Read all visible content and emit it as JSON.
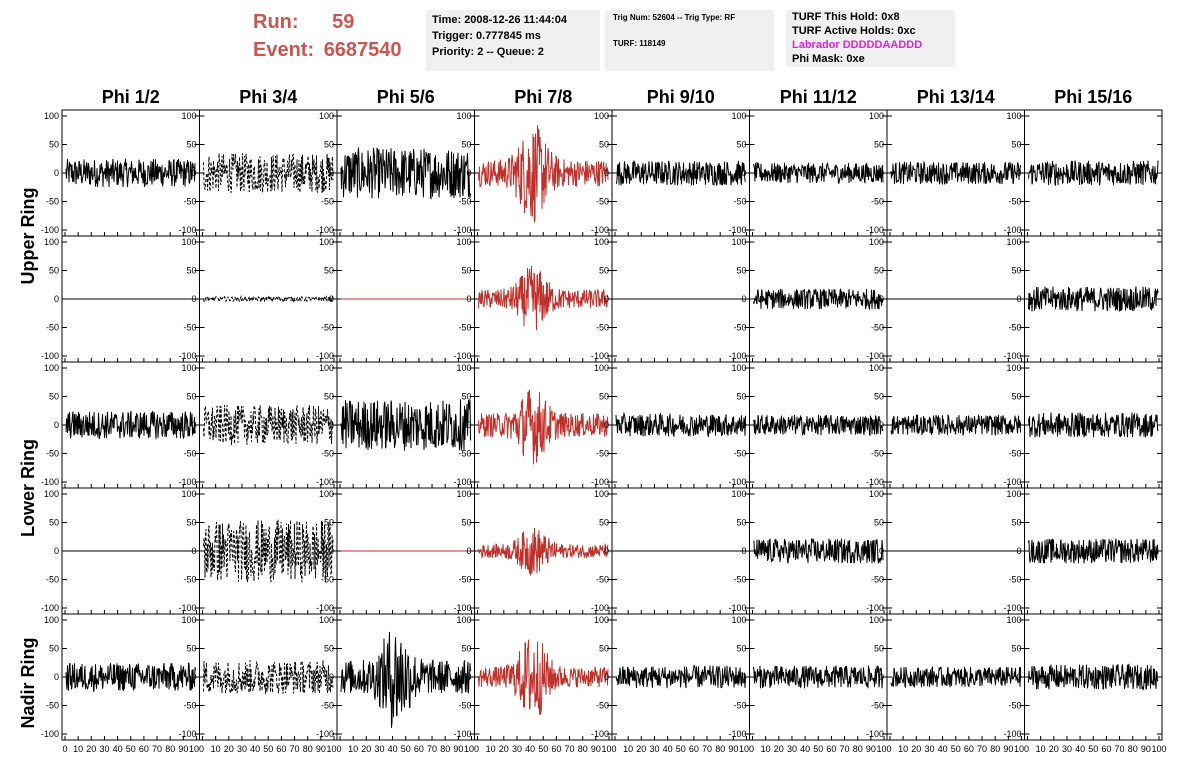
{
  "header": {
    "run_label": "Run:",
    "run_value": "59",
    "event_label": "Event:",
    "event_value": "6687540",
    "info1": [
      "Time: 2008-12-26 11:44:04",
      "Trigger: 0.777845 ms",
      "Priority: 2 -- Queue: 2"
    ],
    "info2": [
      "Trig Num: 52604 -- Trig Type: RF",
      "TURF: 118149"
    ],
    "info3": [
      "TURF This Hold: 0x8",
      "TURF Active Holds: 0xc",
      "Labrador DDDDDAADDD",
      "Phi Mask: 0xe"
    ],
    "labrador_color": "#e020e0",
    "run_color": "#c8554f"
  },
  "chart_data": {
    "type": "line",
    "columns": [
      "Phi 1/2",
      "Phi 3/4",
      "Phi 5/6",
      "Phi 7/8",
      "Phi 9/10",
      "Phi 11/12",
      "Phi 13/14",
      "Phi 15/16"
    ],
    "row_groups": [
      "Upper Ring",
      "Lower Ring",
      "Nadir Ring"
    ],
    "xlim": [
      0,
      100
    ],
    "ylim": [
      -100,
      100
    ],
    "x_ticks": [
      "0",
      "10",
      "20",
      "30",
      "40",
      "50",
      "60",
      "70",
      "80",
      "90",
      "100"
    ],
    "y_ticks": [
      "100",
      "50",
      "0",
      "-50",
      "-100"
    ],
    "trace_colors": {
      "normal": "#000000",
      "trigger": "#c0302a"
    },
    "rows": [
      {
        "panels": [
          {
            "amp": 25,
            "style": "solid",
            "color": "normal"
          },
          {
            "amp": 35,
            "style": "dashed",
            "color": "normal"
          },
          {
            "amp": 45,
            "style": "solid",
            "color": "normal"
          },
          {
            "amp": 40,
            "style": "solid",
            "color": "trigger",
            "peak": 90
          },
          {
            "amp": 22,
            "style": "solid",
            "color": "normal"
          },
          {
            "amp": 18,
            "style": "solid",
            "color": "normal"
          },
          {
            "amp": 20,
            "style": "solid",
            "color": "normal"
          },
          {
            "amp": 22,
            "style": "solid",
            "color": "normal"
          }
        ]
      },
      {
        "panels": [
          {
            "amp": 0,
            "style": "flat",
            "color": "normal"
          },
          {
            "amp": 4,
            "style": "dashed",
            "color": "normal"
          },
          {
            "amp": 0,
            "style": "flat",
            "color": "trigger"
          },
          {
            "amp": 28,
            "style": "solid",
            "color": "trigger",
            "peak": 60
          },
          {
            "amp": 0,
            "style": "flat",
            "color": "normal"
          },
          {
            "amp": 18,
            "style": "solid",
            "color": "normal"
          },
          {
            "amp": 0,
            "style": "flat",
            "color": "normal"
          },
          {
            "amp": 22,
            "style": "solid",
            "color": "normal"
          }
        ]
      },
      {
        "panels": [
          {
            "amp": 25,
            "style": "solid",
            "color": "normal"
          },
          {
            "amp": 35,
            "style": "dashed",
            "color": "normal"
          },
          {
            "amp": 45,
            "style": "solid",
            "color": "normal"
          },
          {
            "amp": 35,
            "style": "solid",
            "color": "trigger",
            "peak": 70
          },
          {
            "amp": 20,
            "style": "solid",
            "color": "normal"
          },
          {
            "amp": 18,
            "style": "solid",
            "color": "normal"
          },
          {
            "amp": 18,
            "style": "solid",
            "color": "normal"
          },
          {
            "amp": 22,
            "style": "solid",
            "color": "normal"
          }
        ]
      },
      {
        "panels": [
          {
            "amp": 0,
            "style": "flat",
            "color": "normal"
          },
          {
            "amp": 55,
            "style": "dashed",
            "color": "normal"
          },
          {
            "amp": 0,
            "style": "flat",
            "color": "trigger"
          },
          {
            "amp": 20,
            "style": "solid",
            "color": "trigger",
            "peak": 45
          },
          {
            "amp": 0,
            "style": "flat",
            "color": "normal"
          },
          {
            "amp": 22,
            "style": "solid",
            "color": "normal"
          },
          {
            "amp": 0,
            "style": "flat",
            "color": "normal"
          },
          {
            "amp": 22,
            "style": "solid",
            "color": "normal"
          }
        ]
      },
      {
        "panels": [
          {
            "amp": 25,
            "style": "solid",
            "color": "normal"
          },
          {
            "amp": 30,
            "style": "dashed",
            "color": "normal"
          },
          {
            "amp": 50,
            "style": "solid",
            "color": "normal",
            "peak": 95
          },
          {
            "amp": 30,
            "style": "solid",
            "color": "trigger",
            "peak": 80
          },
          {
            "amp": 20,
            "style": "solid",
            "color": "normal"
          },
          {
            "amp": 20,
            "style": "solid",
            "color": "normal"
          },
          {
            "amp": 18,
            "style": "solid",
            "color": "normal"
          },
          {
            "amp": 22,
            "style": "solid",
            "color": "normal"
          }
        ]
      }
    ]
  }
}
